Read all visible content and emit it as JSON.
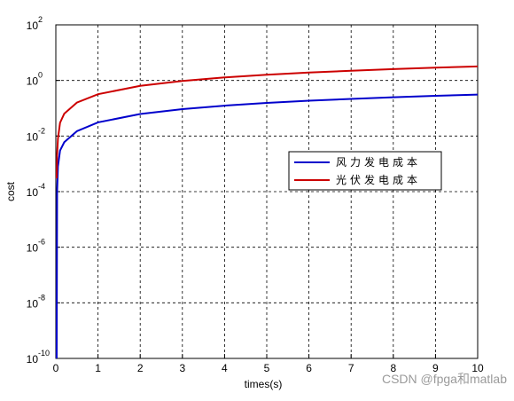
{
  "chart_data": {
    "type": "line",
    "xlabel": "times(s)",
    "ylabel": "cost",
    "log_y": true,
    "grid": true,
    "x": [
      0.02,
      0.03,
      0.05,
      0.1,
      0.2,
      0.5,
      1,
      2,
      3,
      4,
      5,
      6,
      7,
      8,
      9,
      10
    ],
    "series": [
      {
        "name": "风力发电成本",
        "color": "#0000cc",
        "values": [
          1e-10,
          0.0001,
          0.0008,
          0.003,
          0.006,
          0.015,
          0.031,
          0.062,
          0.093,
          0.124,
          0.155,
          0.186,
          0.217,
          0.248,
          0.279,
          0.31
        ]
      },
      {
        "name": "光伏发电成本",
        "color": "#cc0000",
        "values": [
          0.0003,
          0.002,
          0.008,
          0.03,
          0.064,
          0.16,
          0.32,
          0.64,
          0.96,
          1.28,
          1.6,
          1.92,
          2.24,
          2.56,
          2.88,
          3.2
        ]
      }
    ],
    "xlim": [
      0,
      10
    ],
    "xticks": [
      0,
      1,
      2,
      3,
      4,
      5,
      6,
      7,
      8,
      9,
      10
    ],
    "ylim": [
      1e-10,
      100
    ],
    "yticks": [
      {
        "value": 1e-10,
        "label": "10",
        "exponent": "-10"
      },
      {
        "value": 1e-08,
        "label": "10",
        "exponent": "-8"
      },
      {
        "value": 1e-06,
        "label": "10",
        "exponent": "-6"
      },
      {
        "value": 0.0001,
        "label": "10",
        "exponent": "-4"
      },
      {
        "value": 0.01,
        "label": "10",
        "exponent": "-2"
      },
      {
        "value": 1,
        "label": "10",
        "exponent": "0"
      },
      {
        "value": 100,
        "label": "10",
        "exponent": "2"
      }
    ],
    "watermark": "CSDN @fpga和matlab"
  }
}
